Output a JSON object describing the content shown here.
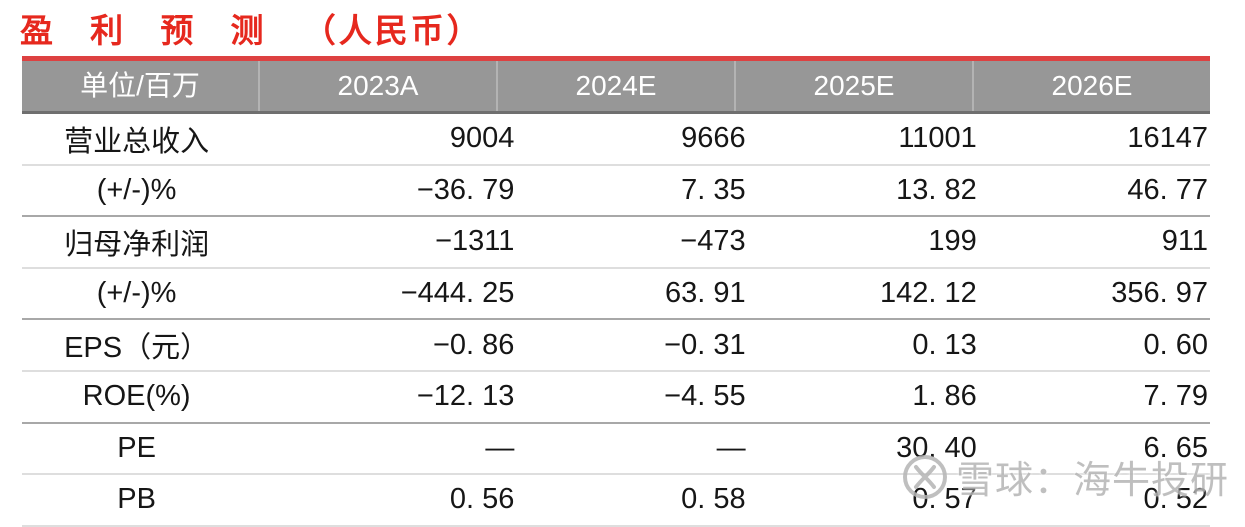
{
  "title": {
    "main": "盈 利 预 测",
    "unit": "（人民币）"
  },
  "table": {
    "unit_header": "单位/百万",
    "columns": [
      "2023A",
      "2024E",
      "2025E",
      "2026E"
    ],
    "rows": [
      {
        "label": "营业总收入",
        "values": [
          "9004",
          "9666",
          "11001",
          "16147"
        ]
      },
      {
        "label": "(+/-)%",
        "values": [
          "−36. 79",
          "7. 35",
          "13. 82",
          "46. 77"
        ]
      },
      {
        "label": "归母净利润",
        "values": [
          "−1311",
          "−473",
          "199",
          "911"
        ]
      },
      {
        "label": "(+/-)%",
        "values": [
          "−444. 25",
          "63. 91",
          "142. 12",
          "356. 97"
        ]
      },
      {
        "label": "EPS（元）",
        "values": [
          "−0. 86",
          "−0. 31",
          "0. 13",
          "0. 60"
        ]
      },
      {
        "label": "ROE(%)",
        "values": [
          "−12. 13",
          "−4. 55",
          "1. 86",
          "7. 79"
        ]
      },
      {
        "label": "PE",
        "values": [
          "—",
          "—",
          "30. 40",
          "6. 65"
        ]
      },
      {
        "label": "PB",
        "values": [
          "0. 56",
          "0. 58",
          "0. 57",
          "0. 52"
        ]
      }
    ]
  },
  "watermark": {
    "logo": "xueqiu-snowball-icon",
    "text": "雪球：海牛投研"
  },
  "colors": {
    "title_red": "#e6281e",
    "rule_red": "#dd4141",
    "header_bg": "#979797",
    "header_text": "#ffffff",
    "header_divider": "#b3b3b3",
    "row_line_light": "#dedede",
    "row_line_dark": "#a8a8a8",
    "watermark_gray": "#b5b5b5"
  }
}
